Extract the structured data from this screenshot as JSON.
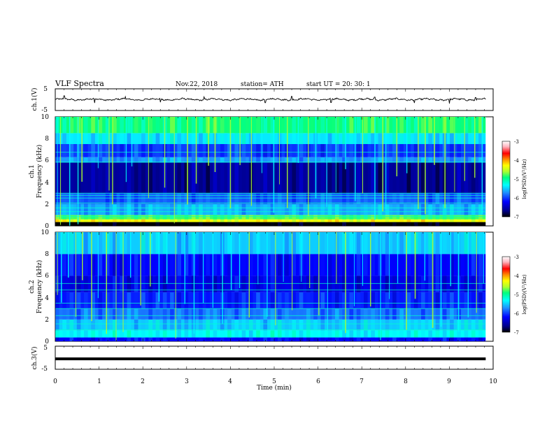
{
  "header": {
    "title": "VLF  Spectra",
    "date": "Nov.22, 2018",
    "station": "station= ATH",
    "start": "start  UT  =    20: 30: 1"
  },
  "colors": {
    "trace": "#000000",
    "axes": "#000000",
    "spectrum_scale": [
      "#000000",
      "#00008b",
      "#0000ff",
      "#1e90ff",
      "#00ffff",
      "#00ff7f",
      "#adff2f",
      "#ffff00",
      "#ff8c00",
      "#ff0000",
      "#ffb6c1",
      "#ffffff"
    ]
  },
  "chart_data": [
    {
      "type": "line",
      "name": "ch1-waveform",
      "ylabel": "ch.1(V)",
      "xlim": [
        0,
        10
      ],
      "ylim": [
        -5,
        5
      ],
      "yticks": [
        "5",
        "-5"
      ],
      "x_end": 9.83,
      "baseline": 0.1,
      "amplitude": 0.6,
      "spikes": [
        {
          "x": 0.2,
          "y": 1.8
        },
        {
          "x": 0.9,
          "y": -1.5
        },
        {
          "x": 1.6,
          "y": 1.4
        },
        {
          "x": 2.4,
          "y": -1.2
        },
        {
          "x": 3.4,
          "y": 1.3
        },
        {
          "x": 4.8,
          "y": -1.4
        },
        {
          "x": 5.4,
          "y": 1.5
        },
        {
          "x": 6.3,
          "y": -1.3
        },
        {
          "x": 7.3,
          "y": 1.2
        },
        {
          "x": 8.2,
          "y": -1.5
        },
        {
          "x": 9.0,
          "y": -1.8
        },
        {
          "x": 9.6,
          "y": 1.0
        }
      ]
    },
    {
      "type": "heatmap",
      "name": "ch1-spectrogram",
      "ylabel_top": "ch.1",
      "ylabel": "Frequency  (kHz)",
      "xlim": [
        0,
        10
      ],
      "ylim": [
        0,
        10
      ],
      "yticks": [
        "0",
        "2",
        "4",
        "6",
        "8",
        "10"
      ],
      "x_end": 9.83,
      "colorbar": {
        "label": "log(PSD)(V²/Hz)",
        "range": [
          -7,
          -3
        ],
        "ticks": [
          "-3",
          "-4",
          "-5",
          "-6",
          "-7"
        ]
      },
      "bands": [
        {
          "f0": 0,
          "f1": 0.35,
          "level": -7
        },
        {
          "f0": 0.35,
          "f1": 0.6,
          "level": -4.3
        },
        {
          "f0": 0.6,
          "f1": 1.0,
          "level": -4.8
        },
        {
          "f0": 1.0,
          "f1": 2.0,
          "level": -5.6
        },
        {
          "f0": 2.0,
          "f1": 3.0,
          "level": -5.9
        },
        {
          "f0": 3.0,
          "f1": 5.8,
          "level": -6.6
        },
        {
          "f0": 5.8,
          "f1": 6.3,
          "level": -5.7
        },
        {
          "f0": 6.3,
          "f1": 7.5,
          "level": -6.0
        },
        {
          "f0": 7.5,
          "f1": 8.5,
          "level": -5.4
        },
        {
          "f0": 8.5,
          "f1": 10,
          "level": -4.9
        }
      ],
      "lines_khz": [
        0.85,
        1.3,
        1.65,
        2.1,
        2.55,
        2.8,
        3.0,
        5.85,
        6.75
      ],
      "sferics_min": [
        0.05,
        0.12,
        0.33,
        0.52,
        0.61,
        0.98,
        1.23,
        1.31,
        1.62,
        1.75,
        2.13,
        2.5,
        2.72,
        3.02,
        3.22,
        3.5,
        3.65,
        4.0,
        4.22,
        4.48,
        4.72,
        4.99,
        5.12,
        5.3,
        5.55,
        5.78,
        5.95,
        6.2,
        6.41,
        6.63,
        6.85,
        7.02,
        7.3,
        7.48,
        7.55,
        7.8,
        8.03,
        8.29,
        8.45,
        8.66,
        8.9,
        9.12,
        9.35,
        9.58,
        9.75
      ]
    },
    {
      "type": "heatmap",
      "name": "ch2-spectrogram",
      "ylabel_top": "ch.2",
      "ylabel": "Frequency  (kHz)",
      "xlim": [
        0,
        10
      ],
      "ylim": [
        0,
        10
      ],
      "yticks": [
        "0",
        "2",
        "4",
        "6",
        "8",
        "10"
      ],
      "x_end": 9.83,
      "colorbar": {
        "label": "log(PSD)(V²/Hz)",
        "range": [
          -7,
          -3
        ],
        "ticks": [
          "-3",
          "-4",
          "-5",
          "-6",
          "-7"
        ]
      },
      "bands": [
        {
          "f0": 0,
          "f1": 0.35,
          "level": -6.2
        },
        {
          "f0": 0.35,
          "f1": 1.0,
          "level": -5.3
        },
        {
          "f0": 1.0,
          "f1": 2.0,
          "level": -5.5
        },
        {
          "f0": 2.0,
          "f1": 3.0,
          "level": -5.8
        },
        {
          "f0": 3.0,
          "f1": 4.5,
          "level": -6.1
        },
        {
          "f0": 4.5,
          "f1": 6.0,
          "level": -6.3
        },
        {
          "f0": 6.0,
          "f1": 8.0,
          "level": -6.2
        },
        {
          "f0": 8.0,
          "f1": 10,
          "level": -5.5
        }
      ],
      "lines_khz": [
        1.05,
        1.6,
        2.35,
        3.0,
        3.5,
        4.7,
        5.3
      ],
      "sferics_min": [
        0.05,
        0.14,
        0.3,
        0.47,
        0.62,
        0.83,
        0.98,
        1.17,
        1.39,
        1.55,
        1.72,
        1.95,
        2.17,
        2.37,
        2.55,
        2.75,
        2.96,
        3.17,
        3.38,
        3.6,
        3.82,
        4.02,
        4.21,
        4.43,
        4.63,
        4.84,
        5.03,
        5.21,
        5.41,
        5.62,
        5.81,
        6.02,
        6.22,
        6.42,
        6.63,
        6.83,
        7.02,
        7.2,
        7.43,
        7.63,
        7.82,
        8.02,
        8.22,
        8.44,
        8.62,
        8.81,
        9.03,
        9.21,
        9.43,
        9.62,
        9.78
      ]
    },
    {
      "type": "line",
      "name": "ch3-waveform",
      "ylabel": "ch.3(V)",
      "xlim": [
        0,
        10
      ],
      "ylim": [
        -5,
        5
      ],
      "yticks": [
        "5",
        "-5"
      ],
      "x_end": 9.83,
      "baseline": -0.5
    }
  ],
  "x_axis": {
    "label": "Time  (min)",
    "ticks": [
      "0",
      "1",
      "2",
      "3",
      "4",
      "5",
      "6",
      "7",
      "8",
      "9",
      "10"
    ]
  }
}
